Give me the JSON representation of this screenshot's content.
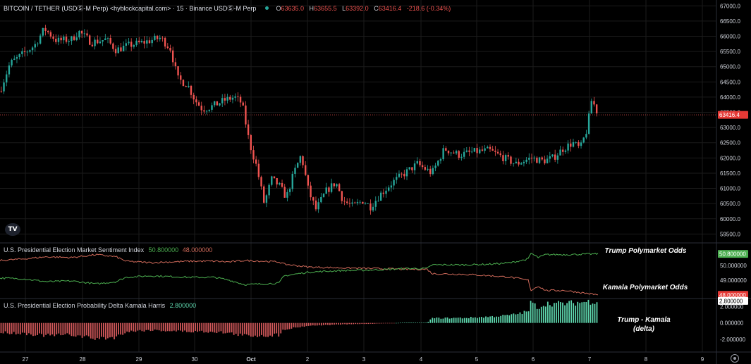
{
  "colors": {
    "up": "#26a69a",
    "down": "#ef5350",
    "trump_line": "#4caf50",
    "kamala_line": "#d06a5a",
    "delta_pos": "#5ed6ad",
    "delta_neg": "#d0585a",
    "price_tag_bg": "#e53935",
    "trump_tag_bg": "#4caf50",
    "kamala_tag_bg": "#e53935",
    "delta_tag_bg": "#ffffff",
    "grid": "#1b1b1b",
    "separator": "#2a2e39"
  },
  "header": {
    "symbol": "BITCOIN / TETHER (USDⓈ-M Perp) <hyblockcapital.com> · 15 · Binance USDⓈ-M Perp",
    "ohlc": {
      "o_label": "O",
      "o_value": "63635.0",
      "h_label": "H",
      "h_value": "63655.5",
      "l_label": "L",
      "l_value": "63392.0",
      "c_label": "C",
      "c_value": "63416.4",
      "change": "-218.6 (-0.34%)"
    }
  },
  "logo_text": "TV",
  "annotations": {
    "trump": "Trump Polymarket Odds",
    "kamala": "Kamala Polymarket Odds",
    "delta_line1": "Trump - Kamala",
    "delta_line2": "(delta)"
  },
  "chart_data": [
    {
      "type": "candlestick",
      "title": "BITCOIN / TETHER (USDⓈ-M Perp) <hyblockcapital.com> · 15 · Binance USDⓈ-M Perp",
      "x_tick_labels": [
        "27",
        "28",
        "29",
        "30",
        "Oct",
        "2",
        "3",
        "4",
        "5",
        "6",
        "7",
        "8",
        "9"
      ],
      "y_tick_labels": [
        "59500.0",
        "60000.0",
        "60500.0",
        "61000.0",
        "61500.0",
        "62000.0",
        "62500.0",
        "63000.0",
        "63500.0",
        "64000.0",
        "64500.0",
        "65000.0",
        "65500.0",
        "66000.0",
        "66500.0",
        "67000.0"
      ],
      "ylim": [
        59300,
        67100
      ],
      "current_price": 63416.4,
      "current_price_label": "63416.4",
      "close_path": [
        {
          "x": 26.55,
          "y": 64200
        },
        {
          "x": 26.75,
          "y": 65100
        },
        {
          "x": 27.0,
          "y": 65400
        },
        {
          "x": 27.25,
          "y": 65700
        },
        {
          "x": 27.45,
          "y": 66250
        },
        {
          "x": 27.7,
          "y": 65850
        },
        {
          "x": 28.0,
          "y": 65900
        },
        {
          "x": 28.15,
          "y": 66150
        },
        {
          "x": 28.4,
          "y": 65800
        },
        {
          "x": 28.7,
          "y": 65900
        },
        {
          "x": 28.9,
          "y": 65550
        },
        {
          "x": 29.15,
          "y": 65700
        },
        {
          "x": 29.45,
          "y": 65800
        },
        {
          "x": 29.8,
          "y": 65950
        },
        {
          "x": 30.0,
          "y": 65600
        },
        {
          "x": 30.15,
          "y": 64600
        },
        {
          "x": 30.35,
          "y": 64400
        },
        {
          "x": 30.5,
          "y": 63900
        },
        {
          "x": 30.65,
          "y": 63600
        },
        {
          "x": 30.85,
          "y": 63700
        },
        {
          "x": 31.1,
          "y": 63900
        },
        {
          "x": 31.3,
          "y": 64000
        },
        {
          "x": 31.45,
          "y": 63800
        },
        {
          "x": 31.6,
          "y": 62500
        },
        {
          "x": 31.75,
          "y": 61700
        },
        {
          "x": 31.9,
          "y": 60500
        },
        {
          "x": 32.05,
          "y": 61300
        },
        {
          "x": 32.2,
          "y": 61100
        },
        {
          "x": 32.35,
          "y": 60700
        },
        {
          "x": 32.5,
          "y": 61500
        },
        {
          "x": 32.65,
          "y": 62100
        },
        {
          "x": 32.8,
          "y": 60900
        },
        {
          "x": 32.95,
          "y": 60300
        },
        {
          "x": 33.15,
          "y": 60900
        },
        {
          "x": 33.35,
          "y": 61200
        },
        {
          "x": 33.5,
          "y": 60600
        },
        {
          "x": 33.7,
          "y": 60400
        },
        {
          "x": 33.9,
          "y": 60600
        },
        {
          "x": 34.05,
          "y": 60400
        },
        {
          "x": 34.25,
          "y": 60800
        },
        {
          "x": 34.5,
          "y": 61200
        },
        {
          "x": 34.75,
          "y": 61500
        },
        {
          "x": 35.0,
          "y": 61800
        },
        {
          "x": 35.3,
          "y": 61500
        },
        {
          "x": 35.55,
          "y": 62300
        },
        {
          "x": 35.85,
          "y": 62100
        },
        {
          "x": 36.15,
          "y": 62200
        },
        {
          "x": 36.45,
          "y": 62250
        },
        {
          "x": 36.7,
          "y": 62050
        },
        {
          "x": 37.0,
          "y": 61800
        },
        {
          "x": 37.3,
          "y": 62000
        },
        {
          "x": 37.55,
          "y": 61900
        },
        {
          "x": 37.75,
          "y": 62000
        },
        {
          "x": 37.95,
          "y": 62300
        },
        {
          "x": 38.15,
          "y": 62500
        },
        {
          "x": 38.3,
          "y": 62300
        },
        {
          "x": 38.45,
          "y": 63000
        },
        {
          "x": 38.52,
          "y": 63900
        },
        {
          "x": 38.6,
          "y": 63700
        },
        {
          "x": 38.66,
          "y": 63416
        }
      ]
    },
    {
      "type": "line",
      "title": "U.S. Presidential Election Market Sentiment Index",
      "y_tick_labels": [
        "50.000000",
        "49.000000"
      ],
      "ylim": [
        47.75,
        51.55
      ],
      "series": [
        {
          "name": "Trump Polymarket Odds",
          "value_label": "50.800000",
          "points": [
            {
              "x": 26.55,
              "y": 49.15
            },
            {
              "x": 27.0,
              "y": 49.1
            },
            {
              "x": 27.5,
              "y": 48.9
            },
            {
              "x": 28.0,
              "y": 48.95
            },
            {
              "x": 28.5,
              "y": 48.75
            },
            {
              "x": 28.9,
              "y": 48.9
            },
            {
              "x": 29.1,
              "y": 49.2
            },
            {
              "x": 29.6,
              "y": 49.3
            },
            {
              "x": 30.0,
              "y": 49.25
            },
            {
              "x": 30.4,
              "y": 49.2
            },
            {
              "x": 30.9,
              "y": 49.2
            },
            {
              "x": 31.2,
              "y": 49.0
            },
            {
              "x": 31.5,
              "y": 48.7
            },
            {
              "x": 31.9,
              "y": 48.75
            },
            {
              "x": 32.2,
              "y": 48.8
            },
            {
              "x": 32.3,
              "y": 49.3
            },
            {
              "x": 32.8,
              "y": 49.55
            },
            {
              "x": 33.4,
              "y": 49.65
            },
            {
              "x": 34.1,
              "y": 49.7
            },
            {
              "x": 34.8,
              "y": 49.8
            },
            {
              "x": 35.2,
              "y": 49.8
            },
            {
              "x": 35.3,
              "y": 50.05
            },
            {
              "x": 36.0,
              "y": 50.05
            },
            {
              "x": 36.5,
              "y": 50.1
            },
            {
              "x": 36.9,
              "y": 50.2
            },
            {
              "x": 37.25,
              "y": 50.45
            },
            {
              "x": 37.3,
              "y": 50.85
            },
            {
              "x": 37.45,
              "y": 50.55
            },
            {
              "x": 37.6,
              "y": 50.75
            },
            {
              "x": 38.0,
              "y": 50.75
            },
            {
              "x": 38.66,
              "y": 50.8
            }
          ]
        },
        {
          "name": "Kamala Polymarket Odds",
          "value_label": "48.000000",
          "points": [
            {
              "x": 26.55,
              "y": 50.35
            },
            {
              "x": 27.0,
              "y": 50.45
            },
            {
              "x": 27.5,
              "y": 50.6
            },
            {
              "x": 28.0,
              "y": 50.55
            },
            {
              "x": 28.5,
              "y": 50.75
            },
            {
              "x": 28.9,
              "y": 50.6
            },
            {
              "x": 29.1,
              "y": 50.3
            },
            {
              "x": 29.6,
              "y": 50.2
            },
            {
              "x": 30.0,
              "y": 50.25
            },
            {
              "x": 30.4,
              "y": 50.3
            },
            {
              "x": 30.9,
              "y": 50.3
            },
            {
              "x": 31.2,
              "y": 50.25
            },
            {
              "x": 31.5,
              "y": 50.35
            },
            {
              "x": 31.9,
              "y": 50.3
            },
            {
              "x": 32.2,
              "y": 50.25
            },
            {
              "x": 32.3,
              "y": 50.1
            },
            {
              "x": 32.8,
              "y": 49.9
            },
            {
              "x": 33.4,
              "y": 49.85
            },
            {
              "x": 34.1,
              "y": 49.8
            },
            {
              "x": 34.8,
              "y": 49.75
            },
            {
              "x": 35.2,
              "y": 49.75
            },
            {
              "x": 35.3,
              "y": 49.45
            },
            {
              "x": 36.0,
              "y": 49.4
            },
            {
              "x": 36.5,
              "y": 49.3
            },
            {
              "x": 36.9,
              "y": 49.2
            },
            {
              "x": 37.25,
              "y": 49.0
            },
            {
              "x": 37.3,
              "y": 48.3
            },
            {
              "x": 37.45,
              "y": 48.6
            },
            {
              "x": 37.6,
              "y": 48.3
            },
            {
              "x": 38.0,
              "y": 48.3
            },
            {
              "x": 38.66,
              "y": 48.0
            }
          ]
        }
      ]
    },
    {
      "type": "bar",
      "title": "U.S. Presidential Election Probability Delta Kamala Harris",
      "value_label": "2.800000",
      "y_tick_labels": [
        "2.000000",
        "0.000000",
        "-2.000000"
      ],
      "ylim": [
        -3.4,
        3.0
      ],
      "profile": [
        {
          "x": 26.55,
          "y": -1.2
        },
        {
          "x": 27.0,
          "y": -1.3
        },
        {
          "x": 27.5,
          "y": -1.6
        },
        {
          "x": 28.0,
          "y": -1.5
        },
        {
          "x": 28.5,
          "y": -2.0
        },
        {
          "x": 28.9,
          "y": -1.8
        },
        {
          "x": 29.1,
          "y": -1.1
        },
        {
          "x": 29.6,
          "y": -0.9
        },
        {
          "x": 30.0,
          "y": -1.0
        },
        {
          "x": 30.4,
          "y": -1.1
        },
        {
          "x": 30.9,
          "y": -1.1
        },
        {
          "x": 31.2,
          "y": -1.3
        },
        {
          "x": 31.5,
          "y": -1.6
        },
        {
          "x": 31.9,
          "y": -1.6
        },
        {
          "x": 32.2,
          "y": -1.5
        },
        {
          "x": 32.3,
          "y": -0.8
        },
        {
          "x": 32.8,
          "y": -0.35
        },
        {
          "x": 33.4,
          "y": -0.2
        },
        {
          "x": 34.1,
          "y": -0.1
        },
        {
          "x": 34.8,
          "y": 0.05
        },
        {
          "x": 35.2,
          "y": 0.05
        },
        {
          "x": 35.3,
          "y": 0.6
        },
        {
          "x": 36.0,
          "y": 0.65
        },
        {
          "x": 36.5,
          "y": 0.8
        },
        {
          "x": 36.9,
          "y": 1.0
        },
        {
          "x": 37.25,
          "y": 1.45
        },
        {
          "x": 37.3,
          "y": 2.6
        },
        {
          "x": 37.45,
          "y": 1.95
        },
        {
          "x": 37.6,
          "y": 2.45
        },
        {
          "x": 38.0,
          "y": 2.45
        },
        {
          "x": 38.66,
          "y": 2.8
        }
      ]
    }
  ]
}
